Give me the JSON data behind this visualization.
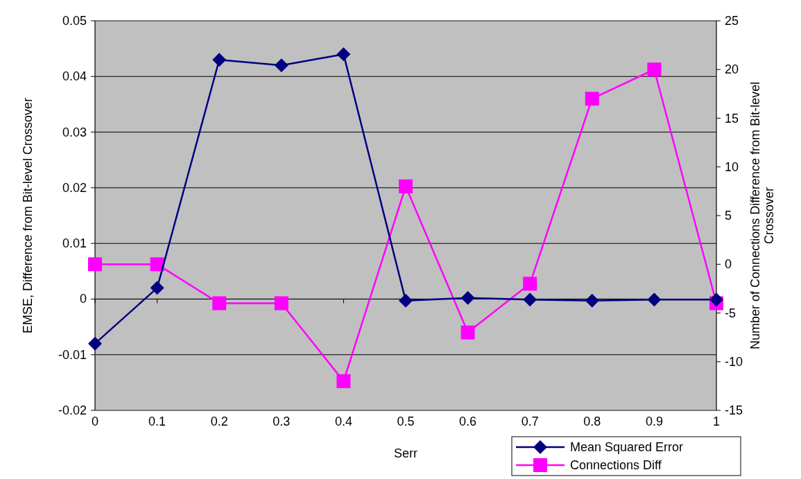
{
  "chart_data": {
    "type": "line",
    "xlabel": "Serr",
    "ylabel": "EMSE, Difference from Bit-level Crossover",
    "y2label": "Number of Connections Difference from Bit-level Crossover",
    "x": [
      0,
      0.1,
      0.2,
      0.3,
      0.4,
      0.5,
      0.6,
      0.7,
      0.8,
      0.9,
      1
    ],
    "series": [
      {
        "name": "Mean Squared Error",
        "color": "#000080",
        "marker": "diamond",
        "values": [
          -0.008,
          0.002,
          0.043,
          0.042,
          0.044,
          -0.0003,
          0.0002,
          -0.0001,
          -0.0003,
          -0.0001,
          -0.0001
        ]
      },
      {
        "name": "Connections Diff",
        "color": "#ff00ff",
        "marker": "square",
        "axis": "y2",
        "values": [
          0,
          0,
          -4,
          -4,
          -12,
          8,
          -7,
          -2,
          17,
          20,
          -4
        ]
      }
    ],
    "xlim": [
      0,
      1
    ],
    "xticks": [
      0,
      0.1,
      0.2,
      0.3,
      0.4,
      0.5,
      0.6,
      0.7,
      0.8,
      0.9,
      1
    ],
    "ylim": [
      -0.02,
      0.05
    ],
    "yticks": [
      -0.02,
      -0.01,
      0,
      0.01,
      0.02,
      0.03,
      0.04,
      0.05
    ],
    "y2lim": [
      -15,
      25
    ],
    "y2ticks": [
      -15,
      -10,
      -5,
      0,
      5,
      10,
      15,
      20,
      25
    ],
    "grid": "y",
    "legend": "bottom right",
    "line_style": "solid"
  }
}
